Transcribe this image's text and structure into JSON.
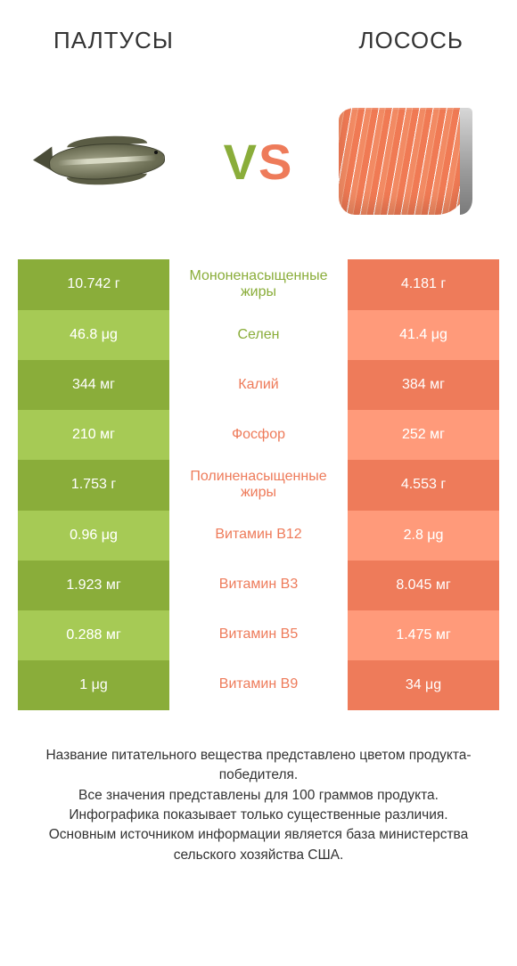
{
  "colors": {
    "left": "#8aad3a",
    "right": "#ee7b5a",
    "left_alt": "#9abb4f",
    "right_alt": "#f28f71",
    "text": "#333333",
    "bg": "#ffffff"
  },
  "typography": {
    "title_fontsize": 26,
    "vs_fontsize": 56,
    "cell_fontsize": 16,
    "nutrient_fontsize": 16,
    "footer_fontsize": 15.5
  },
  "header": {
    "left_title": "ПАЛТУСЫ",
    "right_title": "ЛОСОСЬ",
    "vs_v": "V",
    "vs_s": "S"
  },
  "rows": [
    {
      "left": "10.742 г",
      "nutrient": "Мононенасыщенные жиры",
      "right": "4.181 г",
      "winner": "left"
    },
    {
      "left": "46.8 μg",
      "nutrient": "Селен",
      "right": "41.4 μg",
      "winner": "left"
    },
    {
      "left": "344 мг",
      "nutrient": "Калий",
      "right": "384 мг",
      "winner": "right"
    },
    {
      "left": "210 мг",
      "nutrient": "Фосфор",
      "right": "252 мг",
      "winner": "right"
    },
    {
      "left": "1.753 г",
      "nutrient": "Полиненасыщенные жиры",
      "right": "4.553 г",
      "winner": "right"
    },
    {
      "left": "0.96 μg",
      "nutrient": "Витамин B12",
      "right": "2.8 μg",
      "winner": "right"
    },
    {
      "left": "1.923 мг",
      "nutrient": "Витамин B3",
      "right": "8.045 мг",
      "winner": "right"
    },
    {
      "left": "0.288 мг",
      "nutrient": "Витамин B5",
      "right": "1.475 мг",
      "winner": "right"
    },
    {
      "left": "1 μg",
      "nutrient": "Витамин B9",
      "right": "34 μg",
      "winner": "right"
    }
  ],
  "footer": {
    "line1": "Название питательного вещества представлено цветом продукта-победителя.",
    "line2": "Все значения представлены для 100 граммов продукта.",
    "line3": "Инфографика показывает только существенные различия.",
    "line4": "Основным источником информации является база министерства сельского хозяйства США."
  }
}
